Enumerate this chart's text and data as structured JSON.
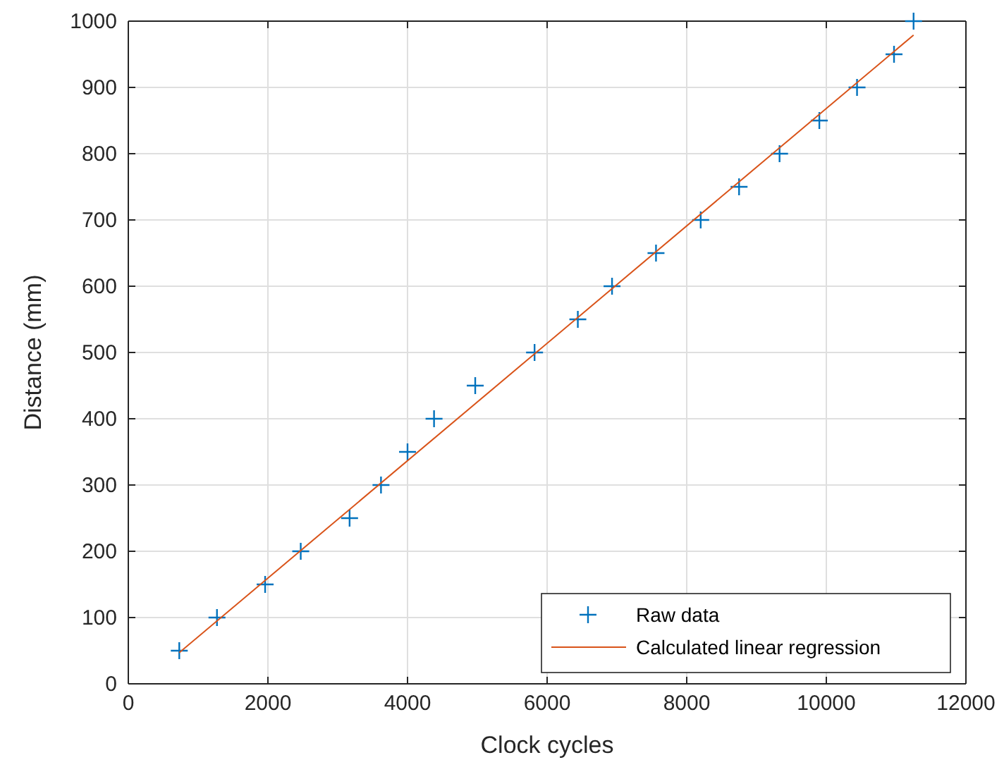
{
  "chart_data": {
    "type": "scatter",
    "xlabel": "Clock cycles",
    "ylabel": "Distance (mm)",
    "xlim": [
      0,
      12000
    ],
    "xticks": [
      0,
      2000,
      4000,
      6000,
      8000,
      10000,
      12000
    ],
    "ylim": [
      0,
      1000
    ],
    "yticks": [
      0,
      100,
      200,
      300,
      400,
      500,
      600,
      700,
      800,
      900,
      1000
    ],
    "grid": true,
    "legend": "bottom right",
    "series": [
      {
        "name": "Raw data",
        "marker": "cross",
        "color": "#0072bd",
        "x": [
          730,
          1270,
          1960,
          2470,
          3170,
          3620,
          4000,
          4380,
          4970,
          5820,
          6440,
          6930,
          7560,
          8200,
          8750,
          9330,
          9900,
          10440,
          10970,
          11250
        ],
        "values": [
          50,
          100,
          150,
          200,
          250,
          300,
          350,
          400,
          450,
          500,
          550,
          600,
          650,
          700,
          750,
          800,
          850,
          900,
          950,
          1000
        ]
      },
      {
        "name": "Calculated linear regression",
        "type": "line",
        "marker": "none",
        "color": "#d95319",
        "x": [
          730,
          11250
        ],
        "values": [
          47,
          979
        ]
      }
    ]
  }
}
